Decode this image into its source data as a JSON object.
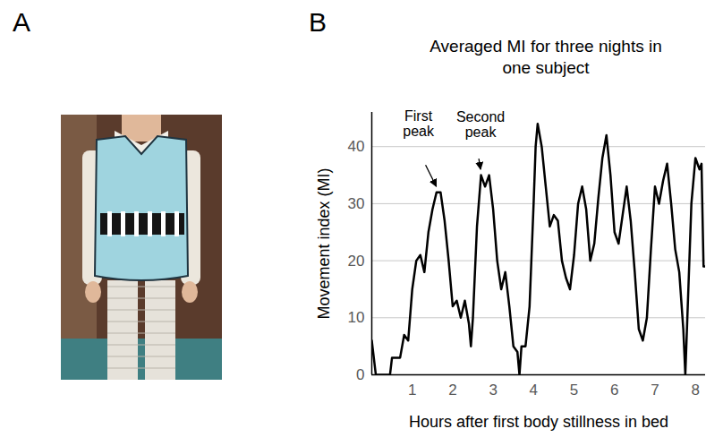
{
  "panels": {
    "A": {
      "letter": "A"
    }
  },
  "chart_data": {
    "type": "line",
    "panel_letter": "B",
    "title": "Averaged MI for three nights in one subject",
    "x_label": "Hours after first body stillness in bed",
    "y_label": "Movement index (MI)",
    "x": [
      0,
      0.1,
      0.45,
      0.5,
      0.7,
      0.8,
      0.9,
      1.0,
      1.1,
      1.2,
      1.3,
      1.4,
      1.5,
      1.6,
      1.7,
      1.8,
      1.9,
      2.0,
      2.1,
      2.2,
      2.3,
      2.4,
      2.45,
      2.5,
      2.6,
      2.7,
      2.8,
      2.9,
      3.0,
      3.1,
      3.2,
      3.3,
      3.4,
      3.5,
      3.6,
      3.65,
      3.7,
      3.8,
      3.9,
      4.0,
      4.05,
      4.1,
      4.2,
      4.3,
      4.4,
      4.5,
      4.6,
      4.7,
      4.8,
      4.9,
      5.0,
      5.1,
      5.2,
      5.3,
      5.4,
      5.5,
      5.6,
      5.7,
      5.8,
      5.9,
      6.0,
      6.1,
      6.2,
      6.3,
      6.4,
      6.5,
      6.6,
      6.7,
      6.8,
      6.9,
      7.0,
      7.1,
      7.2,
      7.3,
      7.4,
      7.5,
      7.6,
      7.7,
      7.75,
      7.8,
      7.9,
      8.0,
      8.1,
      8.15,
      8.2,
      8.25
    ],
    "values": [
      6,
      0,
      0,
      3,
      3,
      7,
      6,
      15,
      20,
      21,
      18,
      25,
      29,
      32,
      32,
      27,
      20,
      12,
      13,
      10,
      13,
      9,
      5,
      10,
      26,
      35,
      33,
      35,
      29,
      20,
      15,
      18,
      12,
      5,
      4,
      0,
      5,
      5,
      12,
      30,
      40,
      44,
      40,
      33,
      26,
      28,
      27,
      20,
      17,
      15,
      21,
      30,
      33,
      29,
      20,
      23,
      31,
      38,
      42,
      35,
      25,
      23,
      28,
      33,
      27,
      18,
      8,
      6,
      10,
      22,
      33,
      30,
      34,
      37,
      30,
      22,
      18,
      8,
      0,
      10,
      30,
      38,
      36,
      37,
      19,
      19
    ],
    "color": "#000000",
    "xlim": [
      0,
      8.25
    ],
    "xticks": [
      1,
      2,
      3,
      4,
      5,
      6,
      7,
      8
    ],
    "ylim": [
      0,
      46
    ],
    "yticks": [
      0,
      10,
      20,
      30,
      40
    ],
    "grid": true,
    "annotations": [
      {
        "text": "First peak",
        "x": 1.65,
        "y": 32
      },
      {
        "text": "Second peak",
        "x": 2.7,
        "y": 35
      }
    ]
  }
}
